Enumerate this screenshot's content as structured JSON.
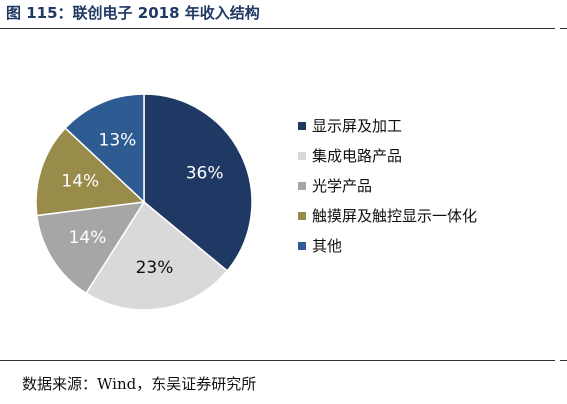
{
  "header": {
    "title": "图 115：联创电子 2018 年收入结构"
  },
  "chart_data": {
    "type": "pie",
    "title": "",
    "slices": [
      {
        "label": "显示屏及加工",
        "value": 36,
        "display": "36%",
        "color": "#1f3864",
        "label_color": "#ffffff"
      },
      {
        "label": "集成电路产品",
        "value": 23,
        "display": "23%",
        "color": "#d9d9d9",
        "label_color": "#111111"
      },
      {
        "label": "光学产品",
        "value": 14,
        "display": "14%",
        "color": "#a6a6a6",
        "label_color": "#ffffff"
      },
      {
        "label": "触摸屏及触控显示一体化",
        "value": 14,
        "display": "14%",
        "color": "#998b4a",
        "label_color": "#ffffff"
      },
      {
        "label": "其他",
        "value": 13,
        "display": "13%",
        "color": "#2f5b93",
        "label_color": "#ffffff"
      }
    ],
    "start_angle": "12 o'clock",
    "direction": "clockwise",
    "legend_position": "right"
  },
  "footer": {
    "source": "数据来源：Wind，东吴证券研究所"
  }
}
